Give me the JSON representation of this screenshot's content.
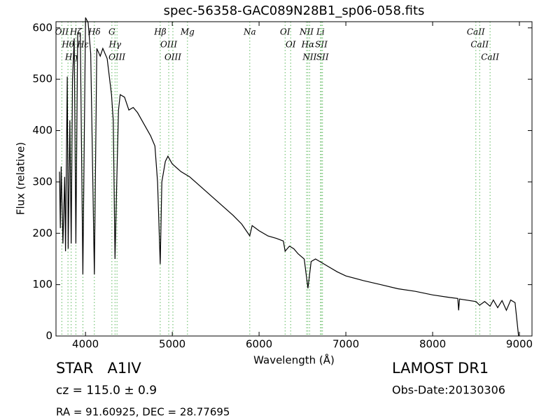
{
  "chart_data": {
    "type": "line",
    "title": "spec-56358-GAC089N28B1_sp06-058.fits",
    "x_label": "Wavelength (Å)",
    "y_label": "Flux (relative)",
    "xlim": [
      3660,
      9145
    ],
    "ylim": [
      0,
      612
    ],
    "xticks": [
      4000,
      5000,
      6000,
      7000,
      8000,
      9000
    ],
    "yticks": [
      0,
      100,
      200,
      300,
      400,
      500,
      600
    ],
    "color": "#000000",
    "line_color": "#5cb85c",
    "x": [
      3700,
      3710,
      3720,
      3740,
      3760,
      3770,
      3790,
      3800,
      3820,
      3835,
      3850,
      3870,
      3889,
      3910,
      3940,
      3970,
      4000,
      4030,
      4060,
      4102,
      4130,
      4170,
      4200,
      4250,
      4300,
      4320,
      4340,
      4360,
      4380,
      4400,
      4450,
      4500,
      4550,
      4600,
      4650,
      4700,
      4750,
      4800,
      4830,
      4861,
      4880,
      4920,
      4950,
      5000,
      5100,
      5200,
      5300,
      5400,
      5500,
      5600,
      5700,
      5800,
      5893,
      5920,
      6000,
      6100,
      6200,
      6280,
      6300,
      6350,
      6400,
      6450,
      6520,
      6563,
      6600,
      6650,
      6700,
      6800,
      6900,
      7000,
      7200,
      7400,
      7600,
      7800,
      8000,
      8200,
      8290,
      8300,
      8310,
      8500,
      8542,
      8600,
      8662,
      8700,
      8750,
      8800,
      8850,
      8900,
      8950,
      8990
    ],
    "values": [
      320,
      210,
      330,
      180,
      310,
      165,
      505,
      170,
      420,
      180,
      500,
      580,
      180,
      590,
      590,
      120,
      620,
      610,
      550,
      120,
      560,
      545,
      560,
      540,
      470,
      420,
      150,
      300,
      440,
      470,
      465,
      440,
      445,
      435,
      420,
      405,
      390,
      370,
      300,
      140,
      300,
      340,
      350,
      335,
      320,
      310,
      295,
      280,
      265,
      250,
      235,
      218,
      195,
      215,
      205,
      195,
      190,
      185,
      165,
      175,
      170,
      160,
      150,
      93,
      145,
      150,
      145,
      135,
      125,
      117,
      108,
      100,
      92,
      87,
      80,
      75,
      73,
      50,
      72,
      67,
      60,
      67,
      58,
      70,
      55,
      69,
      50,
      70,
      65,
      0
    ],
    "lines": [
      {
        "label": "OII",
        "wavelength": 3727
      },
      {
        "label": "Hθ",
        "wavelength": 3798
      },
      {
        "label": "Hη",
        "wavelength": 3835
      },
      {
        "label": "Hζ",
        "wavelength": 3889
      },
      {
        "label": "Hε",
        "wavelength": 3970
      },
      {
        "label": "Hδ",
        "wavelength": 4102
      },
      {
        "label": "G",
        "wavelength": 4304
      },
      {
        "label": "Hγ",
        "wavelength": 4340
      },
      {
        "label": "OIII",
        "wavelength": 4363
      },
      {
        "label": "Hβ",
        "wavelength": 4861
      },
      {
        "label": "OIII",
        "wavelength": 4959
      },
      {
        "label": "OIII",
        "wavelength": 5007
      },
      {
        "label": "Mg",
        "wavelength": 5175
      },
      {
        "label": "Na",
        "wavelength": 5893
      },
      {
        "label": "OI",
        "wavelength": 6300
      },
      {
        "label": "OI",
        "wavelength": 6364
      },
      {
        "label": "NII",
        "wavelength": 6548
      },
      {
        "label": "Hα",
        "wavelength": 6563
      },
      {
        "label": "NII",
        "wavelength": 6583
      },
      {
        "label": "Li",
        "wavelength": 6708
      },
      {
        "label": "SII",
        "wavelength": 6717
      },
      {
        "label": "SII",
        "wavelength": 6731
      },
      {
        "label": "CaII",
        "wavelength": 8498
      },
      {
        "label": "CaII",
        "wavelength": 8542
      },
      {
        "label": "CaII",
        "wavelength": 8662
      }
    ]
  },
  "footer": {
    "object": "STAR   A1IV",
    "redshift": "cz = 115.0 ± 0.9",
    "coords": "RA = 91.60925, DEC = 28.77695",
    "survey": "LAMOST DR1",
    "obs_date": "Obs-Date:20130306"
  }
}
